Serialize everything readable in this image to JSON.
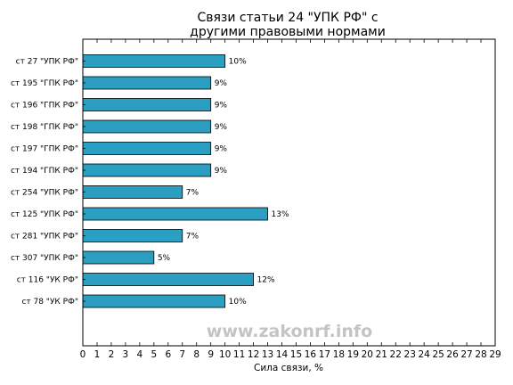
{
  "chart_data": {
    "type": "bar",
    "orientation": "horizontal",
    "title": [
      "Связи статьи 24 \"УПК РФ\" с",
      "другими правовыми нормами"
    ],
    "xlabel": "Сила связи, %",
    "ylabel": "",
    "xlim": [
      0,
      29
    ],
    "xticks": [
      0,
      1,
      2,
      3,
      4,
      5,
      6,
      7,
      8,
      9,
      10,
      11,
      12,
      13,
      14,
      15,
      16,
      17,
      18,
      19,
      20,
      21,
      22,
      23,
      24,
      25,
      26,
      27,
      28,
      29
    ],
    "grid": false,
    "bar_color": "#2b9fc2",
    "categories": [
      "ст 27 \"УПК РФ\"",
      "ст 195 \"ГПК РФ\"",
      "ст 196 \"ГПК РФ\"",
      "ст 198 \"ГПК РФ\"",
      "ст 197 \"ГПК РФ\"",
      "ст 194 \"ГПК РФ\"",
      "ст 254 \"УПК РФ\"",
      "ст 125 \"УПК РФ\"",
      "ст 281 \"УПК РФ\"",
      "ст 307 \"УПК РФ\"",
      "ст 116 \"УК РФ\"",
      "ст 78 \"УК РФ\""
    ],
    "values": [
      10,
      9,
      9,
      9,
      9,
      9,
      7,
      13,
      7,
      5,
      12,
      10
    ],
    "value_labels": [
      "10%",
      "9%",
      "9%",
      "9%",
      "9%",
      "9%",
      "7%",
      "13%",
      "7%",
      "5%",
      "12%",
      "10%"
    ]
  },
  "watermark": "www.zakonrf.info"
}
